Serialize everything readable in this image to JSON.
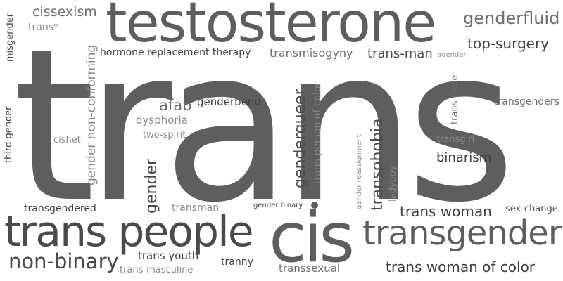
{
  "word_cloud": {
    "background": "#ffffff",
    "words": [
      "trans",
      "testosterone",
      "cis",
      "trans people",
      "transgender",
      "non-binary",
      "trans woman of color",
      "trans woman",
      "genderfluid",
      "top-surgery",
      "trans-man",
      "transmisogyny",
      "hormone replacement therapy",
      "cissexism",
      "trans*",
      "misgender",
      "agender",
      "afab",
      "genderbend",
      "dysphoria",
      "two-spirit",
      "cishet",
      "gender non-conforming",
      "third gender",
      "gender",
      "genderqueer",
      "trans person of color",
      "transphobia",
      "gender reassignment",
      "ladyboy",
      "trans-male",
      "transgenders",
      "transgirl",
      "binarism",
      "transgendered",
      "transman",
      "gender binary",
      "sex-change",
      "trans youth",
      "trans-masculine",
      "tranny",
      "transsexual"
    ]
  }
}
